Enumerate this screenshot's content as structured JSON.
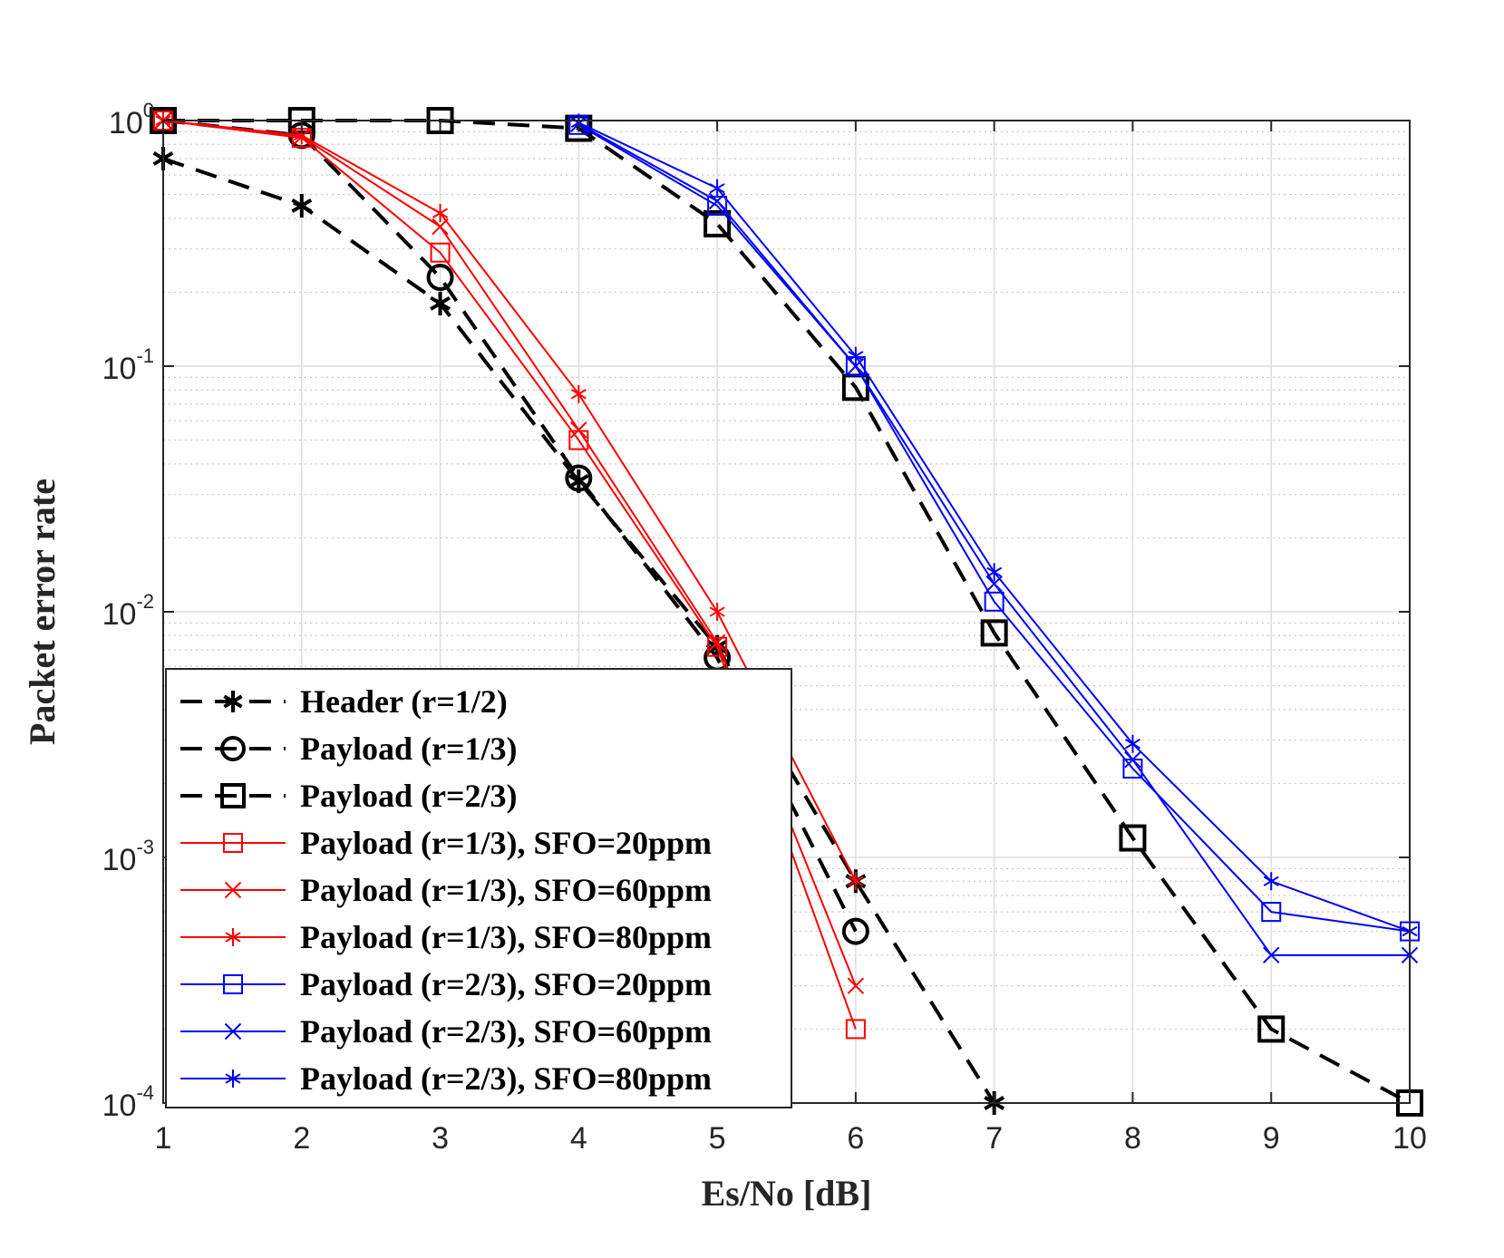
{
  "chart_data": {
    "type": "line",
    "title": "",
    "xlabel": "Es/No [dB]",
    "ylabel": "Packet error rate",
    "xlim": [
      1,
      10
    ],
    "ylim": [
      0.0001,
      1
    ],
    "yscale": "log",
    "grid": true,
    "legend_location": "bottom-left",
    "x_ticks": [
      "1",
      "2",
      "3",
      "4",
      "5",
      "6",
      "7",
      "8",
      "9",
      "10"
    ],
    "y_ticks": [
      {
        "base": "10",
        "exp": "0",
        "value": 1
      },
      {
        "base": "10",
        "exp": "-1",
        "value": 0.1
      },
      {
        "base": "10",
        "exp": "-2",
        "value": 0.01
      },
      {
        "base": "10",
        "exp": "-3",
        "value": 0.001
      },
      {
        "base": "10",
        "exp": "-4",
        "value": 0.0001
      }
    ],
    "series": [
      {
        "name": "Header (r=1/2)",
        "color": "#000000",
        "style": "dashed",
        "marker": "asterisk",
        "x": [
          1,
          2,
          3,
          4,
          5,
          6,
          7
        ],
        "y": [
          0.7,
          0.45,
          0.18,
          0.034,
          0.0072,
          0.0008,
          0.0001
        ]
      },
      {
        "name": "Payload (r=1/3)",
        "color": "#000000",
        "style": "dashed",
        "marker": "circle",
        "x": [
          1,
          2,
          3,
          4,
          5,
          6
        ],
        "y": [
          1.0,
          0.87,
          0.23,
          0.035,
          0.0065,
          0.0005
        ]
      },
      {
        "name": "Payload (r=2/3)",
        "color": "#000000",
        "style": "dashed",
        "marker": "square",
        "x": [
          1,
          2,
          3,
          4,
          5,
          6,
          7,
          8,
          9,
          10
        ],
        "y": [
          1.0,
          1.0,
          1.0,
          0.93,
          0.38,
          0.082,
          0.0082,
          0.0012,
          0.0002,
          0.0001
        ]
      },
      {
        "name": "Payload (r=1/3), SFO=20ppm",
        "color": "#ff0000",
        "style": "solid",
        "marker": "square",
        "x": [
          1,
          2,
          3,
          4,
          5,
          6
        ],
        "y": [
          1.0,
          0.85,
          0.29,
          0.05,
          0.0072,
          0.0002
        ]
      },
      {
        "name": "Payload (r=1/3), SFO=60ppm",
        "color": "#ff0000",
        "style": "solid",
        "marker": "x",
        "x": [
          1,
          2,
          3,
          4,
          5,
          6
        ],
        "y": [
          1.0,
          0.86,
          0.37,
          0.055,
          0.0075,
          0.0003
        ]
      },
      {
        "name": "Payload (r=1/3), SFO=80ppm",
        "color": "#ff0000",
        "style": "solid",
        "marker": "asterisk",
        "x": [
          1,
          2,
          3,
          4,
          5,
          6
        ],
        "y": [
          1.0,
          0.87,
          0.42,
          0.077,
          0.01,
          0.0008
        ]
      },
      {
        "name": "Payload (r=2/3), SFO=20ppm",
        "color": "#0000ff",
        "style": "solid",
        "marker": "square",
        "x": [
          4,
          5,
          6,
          7,
          8,
          9,
          10
        ],
        "y": [
          0.96,
          0.45,
          0.1,
          0.011,
          0.0023,
          0.0006,
          0.0005
        ]
      },
      {
        "name": "Payload (r=2/3), SFO=60ppm",
        "color": "#0000ff",
        "style": "solid",
        "marker": "x",
        "x": [
          4,
          5,
          6,
          7,
          8,
          9,
          10
        ],
        "y": [
          0.97,
          0.47,
          0.1,
          0.013,
          0.0025,
          0.0004,
          0.0004
        ]
      },
      {
        "name": "Payload (r=2/3), SFO=80ppm",
        "color": "#0000ff",
        "style": "solid",
        "marker": "asterisk",
        "x": [
          4,
          5,
          6,
          7,
          8,
          9,
          10
        ],
        "y": [
          0.98,
          0.53,
          0.11,
          0.0145,
          0.0029,
          0.0008,
          0.0005
        ]
      }
    ]
  }
}
